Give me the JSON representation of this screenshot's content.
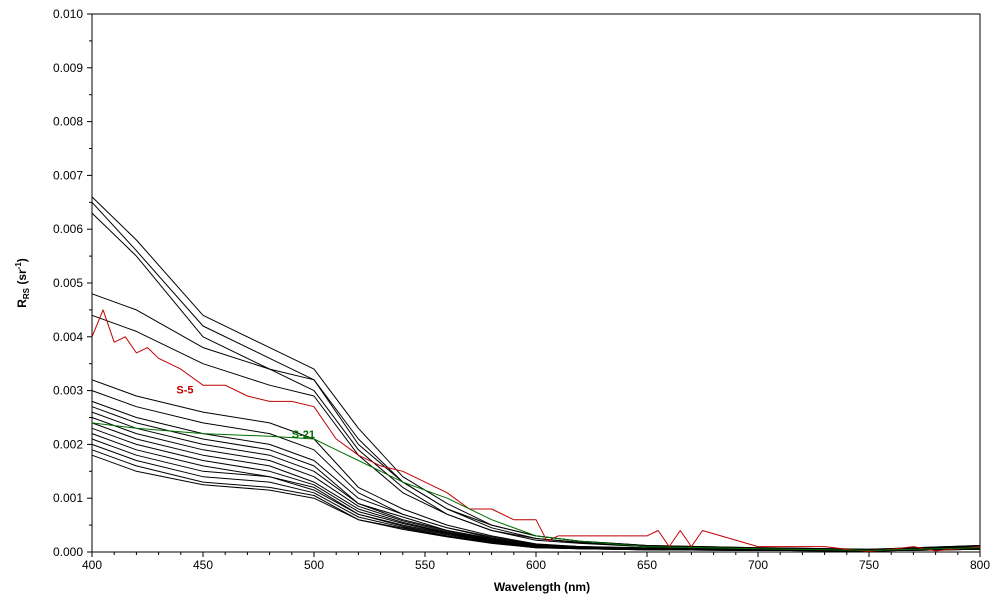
{
  "chart_data": {
    "type": "line",
    "title": "",
    "xlabel": "Wavelength (nm)",
    "ylabel": {
      "main": "R",
      "sub": "RS",
      "unit_pre": " (sr",
      "unit_sup": "-1",
      "unit_post": ")"
    },
    "xlim": [
      400,
      800
    ],
    "ylim": [
      0,
      0.01
    ],
    "x_ticks": [
      400,
      450,
      500,
      550,
      600,
      650,
      700,
      750,
      800
    ],
    "x_tick_labels": [
      "400",
      "450",
      "500",
      "550",
      "600",
      "650",
      "700",
      "750",
      "800"
    ],
    "y_ticks": [
      0,
      0.001,
      0.002,
      0.003,
      0.004,
      0.005,
      0.006,
      0.007,
      0.008,
      0.009,
      0.01
    ],
    "y_tick_labels": [
      "0.000",
      "0.001",
      "0.002",
      "0.003",
      "0.004",
      "0.005",
      "0.006",
      "0.007",
      "0.008",
      "0.009",
      "0.010"
    ],
    "grid": false,
    "legend": "none",
    "colors": {
      "default": "#000000",
      "S-5": "#c00000",
      "S-21": "#007000"
    },
    "series": [
      {
        "x": [
          400,
          420,
          450,
          480,
          500,
          520,
          540,
          560,
          580,
          600,
          620,
          650,
          700,
          750,
          800
        ],
        "values": [
          0.0066,
          0.0058,
          0.0044,
          0.0038,
          0.0034,
          0.0023,
          0.0014,
          0.0009,
          0.0005,
          0.0003,
          0.0002,
          0.00012,
          8e-05,
          5e-05,
          0.00012
        ]
      },
      {
        "x": [
          400,
          420,
          450,
          480,
          500,
          520,
          540,
          560,
          580,
          600,
          620,
          650,
          700,
          750,
          800
        ],
        "values": [
          0.0065,
          0.0056,
          0.0042,
          0.0036,
          0.0032,
          0.0021,
          0.0013,
          0.0008,
          0.00045,
          0.00025,
          0.00018,
          0.0001,
          7e-05,
          4e-05,
          0.0001
        ]
      },
      {
        "x": [
          400,
          420,
          450,
          480,
          500,
          520,
          540,
          560,
          580,
          600,
          620,
          650,
          700,
          750,
          800
        ],
        "values": [
          0.0063,
          0.0055,
          0.004,
          0.0034,
          0.003,
          0.0019,
          0.0012,
          0.0007,
          0.0004,
          0.00022,
          0.00016,
          0.0001,
          6e-05,
          4e-05,
          0.0001
        ]
      },
      {
        "x": [
          400,
          420,
          450,
          480,
          500,
          520,
          540,
          560,
          580,
          600,
          620,
          650,
          700,
          750,
          800
        ],
        "values": [
          0.0048,
          0.0045,
          0.0038,
          0.0034,
          0.0032,
          0.002,
          0.0013,
          0.0008,
          0.0005,
          0.0003,
          0.0002,
          0.00012,
          8e-05,
          5e-05,
          0.00012
        ]
      },
      {
        "x": [
          400,
          420,
          450,
          480,
          500,
          520,
          540,
          560,
          580,
          600,
          620,
          650,
          700,
          750,
          800
        ],
        "values": [
          0.0044,
          0.0041,
          0.0035,
          0.0031,
          0.0029,
          0.0018,
          0.0011,
          0.0007,
          0.0004,
          0.00025,
          0.00017,
          0.0001,
          7e-05,
          4e-05,
          0.0001
        ]
      },
      {
        "x": [
          400,
          420,
          450,
          480,
          500,
          520,
          540,
          560,
          580,
          600,
          620,
          650,
          700,
          750,
          800
        ],
        "values": [
          0.0032,
          0.0029,
          0.0026,
          0.0024,
          0.0021,
          0.0012,
          0.0008,
          0.0005,
          0.0003,
          0.00015,
          0.0001,
          8e-05,
          5e-05,
          3e-05,
          8e-05
        ]
      },
      {
        "x": [
          400,
          420,
          450,
          480,
          500,
          520,
          540,
          560,
          580,
          600,
          620,
          650,
          700,
          750,
          800
        ],
        "values": [
          0.003,
          0.0027,
          0.0024,
          0.0022,
          0.0019,
          0.0011,
          0.0007,
          0.00045,
          0.00028,
          0.00014,
          0.0001,
          7e-05,
          5e-05,
          3e-05,
          8e-05
        ]
      },
      {
        "x": [
          400,
          420,
          450,
          480,
          500,
          520,
          540,
          560,
          580,
          600,
          620,
          650,
          700,
          750,
          800
        ],
        "values": [
          0.0028,
          0.0025,
          0.0022,
          0.002,
          0.0017,
          0.001,
          0.0007,
          0.00045,
          0.00026,
          0.00013,
          0.0001,
          6e-05,
          4e-05,
          3e-05,
          7e-05
        ]
      },
      {
        "x": [
          400,
          420,
          450,
          480,
          500,
          520,
          540,
          560,
          580,
          600,
          620,
          650,
          700,
          750,
          800
        ],
        "values": [
          0.0027,
          0.0024,
          0.0021,
          0.0019,
          0.0016,
          0.0009,
          0.00065,
          0.0004,
          0.00025,
          0.00012,
          9e-05,
          6e-05,
          4e-05,
          3e-05,
          7e-05
        ]
      },
      {
        "x": [
          400,
          420,
          450,
          480,
          500,
          520,
          540,
          560,
          580,
          600,
          620,
          650,
          700,
          750,
          800
        ],
        "values": [
          0.0026,
          0.0023,
          0.002,
          0.0018,
          0.0015,
          0.0009,
          0.0006,
          0.0004,
          0.00024,
          0.00012,
          9e-05,
          6e-05,
          4e-05,
          3e-05,
          7e-05
        ]
      },
      {
        "x": [
          400,
          420,
          450,
          480,
          500,
          520,
          540,
          560,
          580,
          600,
          620,
          650,
          700,
          750,
          800
        ],
        "values": [
          0.0025,
          0.0022,
          0.0019,
          0.0017,
          0.0014,
          0.00085,
          0.00058,
          0.00038,
          0.00023,
          0.00011,
          8e-05,
          5e-05,
          4e-05,
          3e-05,
          6e-05
        ]
      },
      {
        "x": [
          400,
          420,
          450,
          480,
          500,
          520,
          540,
          560,
          580,
          600,
          620,
          650,
          700,
          750,
          800
        ],
        "values": [
          0.0024,
          0.0021,
          0.0018,
          0.0016,
          0.0013,
          0.0008,
          0.00055,
          0.00036,
          0.00022,
          0.0001,
          8e-05,
          5e-05,
          4e-05,
          3e-05,
          6e-05
        ]
      },
      {
        "x": [
          400,
          420,
          450,
          480,
          500,
          520,
          540,
          560,
          580,
          600,
          620,
          650,
          700,
          750,
          800
        ],
        "values": [
          0.0023,
          0.002,
          0.0017,
          0.0015,
          0.00125,
          0.00075,
          0.00053,
          0.00035,
          0.00021,
          0.0001,
          8e-05,
          5e-05,
          3e-05,
          2e-05,
          6e-05
        ]
      },
      {
        "x": [
          400,
          420,
          450,
          480,
          500,
          520,
          540,
          560,
          580,
          600,
          620,
          650,
          700,
          750,
          800
        ],
        "values": [
          0.0022,
          0.0019,
          0.0016,
          0.0014,
          0.0012,
          0.0007,
          0.0005,
          0.00034,
          0.0002,
          0.0001,
          7e-05,
          5e-05,
          3e-05,
          2e-05,
          6e-05
        ]
      },
      {
        "x": [
          400,
          420,
          450,
          480,
          500,
          520,
          540,
          560,
          580,
          600,
          620,
          650,
          700,
          750,
          800
        ],
        "values": [
          0.0021,
          0.0018,
          0.0015,
          0.0014,
          0.00115,
          0.0007,
          0.00048,
          0.00032,
          0.00019,
          9e-05,
          7e-05,
          4e-05,
          3e-05,
          2e-05,
          5e-05
        ]
      },
      {
        "x": [
          400,
          420,
          450,
          480,
          500,
          520,
          540,
          560,
          580,
          600,
          620,
          650,
          700,
          750,
          800
        ],
        "values": [
          0.002,
          0.0017,
          0.0014,
          0.0013,
          0.0011,
          0.00065,
          0.00046,
          0.0003,
          0.00018,
          9e-05,
          6e-05,
          4e-05,
          3e-05,
          2e-05,
          5e-05
        ]
      },
      {
        "x": [
          400,
          420,
          450,
          480,
          500,
          520,
          540,
          560,
          580,
          600,
          620,
          650,
          700,
          750,
          800
        ],
        "values": [
          0.0019,
          0.0016,
          0.0013,
          0.0012,
          0.00105,
          0.0006,
          0.00044,
          0.00029,
          0.00017,
          8e-05,
          6e-05,
          4e-05,
          3e-05,
          2e-05,
          5e-05
        ]
      },
      {
        "x": [
          400,
          420,
          450,
          480,
          500,
          520,
          540,
          560,
          580,
          600,
          620,
          650,
          700,
          750,
          800
        ],
        "values": [
          0.0018,
          0.0015,
          0.00125,
          0.00115,
          0.001,
          0.0006,
          0.00042,
          0.00028,
          0.00016,
          8e-05,
          6e-05,
          4e-05,
          3e-05,
          2e-05,
          5e-05
        ]
      },
      {
        "name": "S-5",
        "color": "#c00000",
        "x": [
          400,
          405,
          410,
          415,
          420,
          425,
          430,
          440,
          450,
          460,
          470,
          480,
          490,
          500,
          510,
          520,
          530,
          540,
          550,
          560,
          570,
          580,
          590,
          600,
          605,
          610,
          650,
          655,
          660,
          665,
          670,
          675,
          700,
          720,
          730,
          740,
          750,
          760,
          770,
          780,
          790,
          800
        ],
        "values": [
          0.004,
          0.0045,
          0.0039,
          0.004,
          0.0037,
          0.0038,
          0.0036,
          0.0034,
          0.0031,
          0.0031,
          0.0029,
          0.0028,
          0.0028,
          0.0027,
          0.0021,
          0.0018,
          0.0016,
          0.0015,
          0.0013,
          0.0011,
          0.0008,
          0.0008,
          0.0006,
          0.0006,
          0.0002,
          0.0003,
          0.0003,
          0.0004,
          0.0001,
          0.0004,
          0.0001,
          0.0004,
          0.0001,
          0.0001,
          0.0001,
          5e-05,
          1e-05,
          5e-05,
          0.0001,
          2e-05,
          6e-05,
          0.0001
        ]
      },
      {
        "name": "S-21",
        "color": "#007000",
        "x": [
          400,
          420,
          450,
          480,
          500,
          510,
          520,
          540,
          560,
          580,
          600,
          620,
          650,
          700,
          750,
          800
        ],
        "values": [
          0.0024,
          0.0023,
          0.0022,
          0.00215,
          0.0021,
          0.0019,
          0.0017,
          0.0013,
          0.001,
          0.0006,
          0.0003,
          0.0002,
          0.0001,
          6e-05,
          3e-05,
          8e-05
        ]
      }
    ],
    "annotations": [
      {
        "text": "S-5",
        "x": 438,
        "y": 0.00295,
        "color": "#c00000"
      },
      {
        "text": "S-21",
        "x": 490,
        "y": 0.00212,
        "color": "#007000"
      }
    ]
  }
}
